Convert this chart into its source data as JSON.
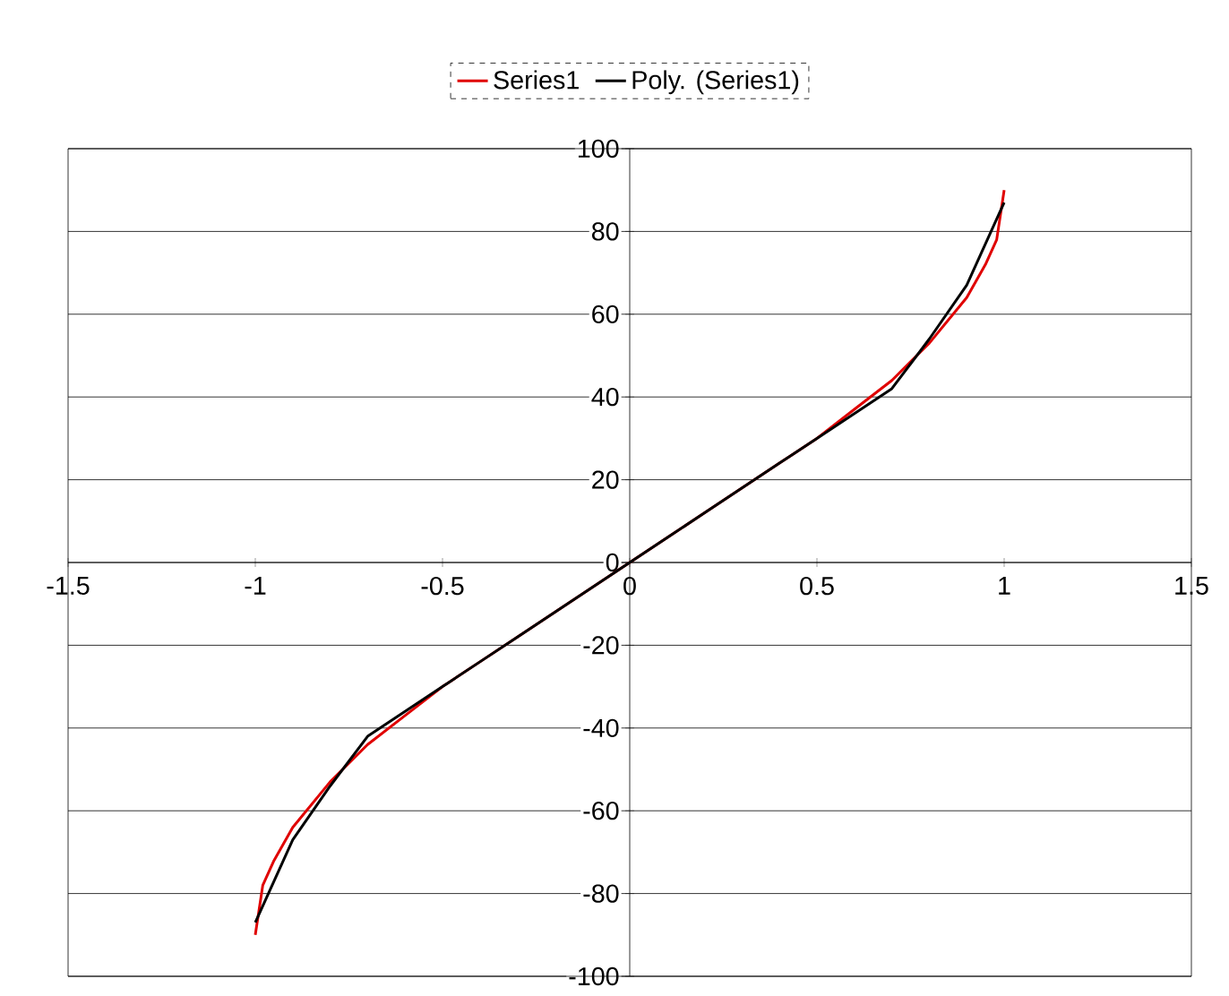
{
  "chart_data": {
    "type": "line",
    "xlim": [
      -1.5,
      1.5
    ],
    "ylim": [
      -100,
      100
    ],
    "xticks": [
      -1.5,
      -1,
      -0.5,
      0,
      0.5,
      1,
      1.5
    ],
    "yticks": [
      -100,
      -80,
      -60,
      -40,
      -20,
      0,
      20,
      40,
      60,
      80,
      100
    ],
    "grid": "y",
    "legend": "top",
    "marker": "none",
    "line_style": "solid",
    "series": [
      {
        "name": "Series1",
        "color": "#e00000",
        "x": [
          -1,
          -0.98,
          -0.95,
          -0.9,
          -0.8,
          -0.7,
          -0.6,
          -0.5,
          -0.4,
          -0.3,
          -0.2,
          -0.1,
          0,
          0.1,
          0.2,
          0.3,
          0.4,
          0.5,
          0.6,
          0.7,
          0.8,
          0.9,
          0.95,
          0.98,
          1
        ],
        "values": [
          -90,
          -78,
          -72,
          -64,
          -53,
          -44,
          -37,
          -30,
          -24,
          -18,
          -12,
          -6,
          0,
          6,
          12,
          18,
          24,
          30,
          37,
          44,
          53,
          64,
          72,
          78,
          90
        ]
      },
      {
        "name": "Poly. (Series1)",
        "color": "#000000",
        "x": [
          -1,
          -0.9,
          -0.8,
          -0.7,
          -0.6,
          -0.5,
          -0.4,
          -0.3,
          -0.2,
          -0.1,
          0,
          0.1,
          0.2,
          0.3,
          0.4,
          0.5,
          0.6,
          0.7,
          0.8,
          0.9,
          1
        ],
        "values": [
          -87,
          -67,
          -54,
          -42,
          -36,
          -30,
          -24,
          -18,
          -12,
          -6,
          0,
          6,
          12,
          18,
          24,
          30,
          36,
          42,
          54,
          67,
          87
        ]
      }
    ]
  }
}
